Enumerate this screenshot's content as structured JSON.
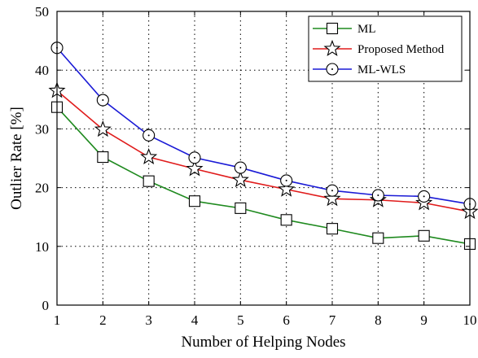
{
  "chart_data": {
    "type": "line",
    "title": "",
    "xlabel": "Number of Helping Nodes",
    "ylabel": "Outlier Rate [%]",
    "x": [
      1,
      2,
      3,
      4,
      5,
      6,
      7,
      8,
      9,
      10
    ],
    "xlim": [
      1,
      10
    ],
    "ylim": [
      0,
      50
    ],
    "xticks": [
      "1",
      "2",
      "3",
      "4",
      "5",
      "6",
      "7",
      "8",
      "9",
      "10"
    ],
    "yticks": [
      "0",
      "10",
      "20",
      "30",
      "40",
      "50"
    ],
    "grid": true,
    "legend_position": "top-right",
    "series": [
      {
        "name": "ML",
        "color": "#1f8a1f",
        "marker": "square",
        "values": [
          33.7,
          25.2,
          21.1,
          17.7,
          16.5,
          14.5,
          13.0,
          11.4,
          11.8,
          10.4
        ]
      },
      {
        "name": "Proposed Method",
        "color": "#e01b1b",
        "marker": "star",
        "values": [
          36.5,
          29.9,
          25.2,
          23.2,
          21.3,
          19.7,
          18.1,
          17.9,
          17.4,
          15.9
        ]
      },
      {
        "name": "ML-WLS",
        "color": "#1a1ad6",
        "marker": "circle",
        "values": [
          43.8,
          34.9,
          28.9,
          25.1,
          23.4,
          21.2,
          19.5,
          18.7,
          18.5,
          17.2
        ]
      }
    ]
  }
}
